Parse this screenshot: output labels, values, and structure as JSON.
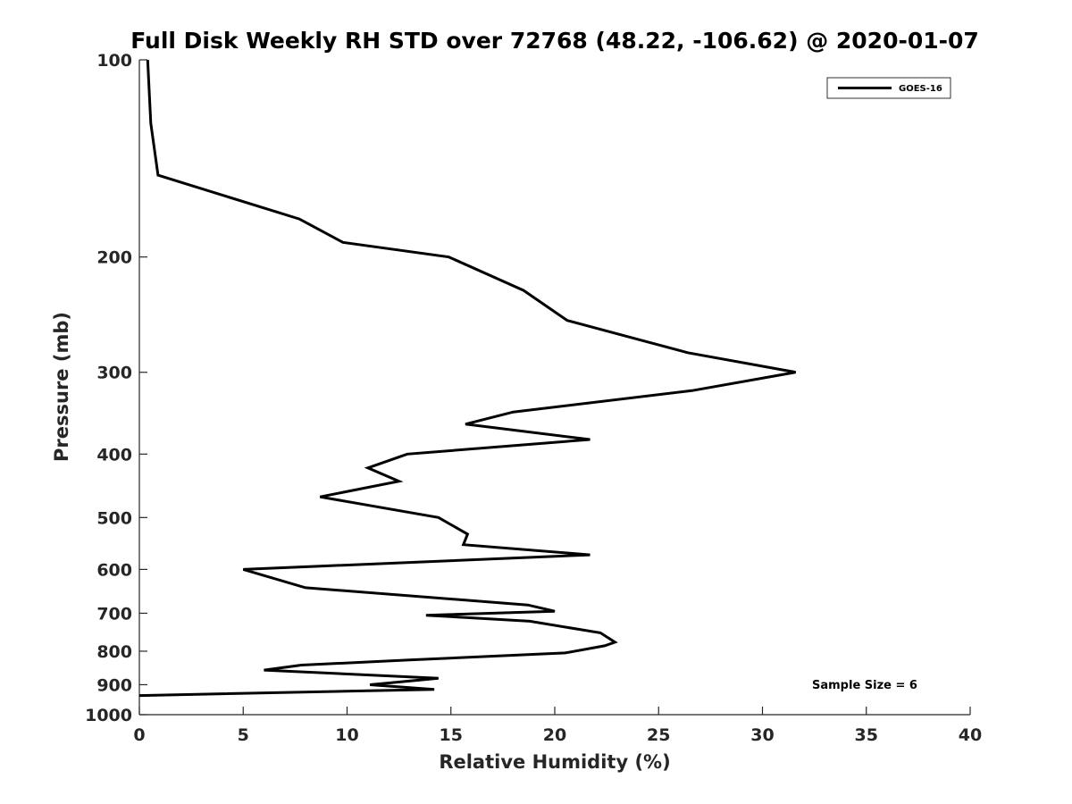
{
  "chart_data": {
    "type": "line",
    "title": "Full Disk Weekly RH STD over 72768 (48.22, -106.62) @ 2020-01-07",
    "xlabel": "Relative Humidity (%)",
    "ylabel": "Pressure (mb)",
    "xlim": [
      0,
      40
    ],
    "ylim": [
      100,
      1000
    ],
    "y_scale": "log",
    "y_reversed": true,
    "x_ticks": [
      "0",
      "5",
      "10",
      "15",
      "20",
      "25",
      "30",
      "35",
      "40"
    ],
    "y_ticks": [
      "100",
      "200",
      "300",
      "400",
      "500",
      "600",
      "700",
      "800",
      "900",
      "1000"
    ],
    "grid": false,
    "legend_position": "top-right",
    "annotation": "Sample Size = 6",
    "series": [
      {
        "name": "GOES-16",
        "color": "#000000",
        "points": [
          {
            "x": 0.4,
            "p": 100
          },
          {
            "x": 0.55,
            "p": 125
          },
          {
            "x": 0.9,
            "p": 150
          },
          {
            "x": 7.7,
            "p": 175
          },
          {
            "x": 9.8,
            "p": 190
          },
          {
            "x": 14.9,
            "p": 200
          },
          {
            "x": 18.5,
            "p": 225
          },
          {
            "x": 20.6,
            "p": 250
          },
          {
            "x": 26.4,
            "p": 280
          },
          {
            "x": 31.6,
            "p": 300
          },
          {
            "x": 26.6,
            "p": 320
          },
          {
            "x": 18.0,
            "p": 345
          },
          {
            "x": 15.7,
            "p": 360
          },
          {
            "x": 21.7,
            "p": 380
          },
          {
            "x": 12.9,
            "p": 400
          },
          {
            "x": 11.0,
            "p": 420
          },
          {
            "x": 12.5,
            "p": 440
          },
          {
            "x": 8.7,
            "p": 465
          },
          {
            "x": 14.4,
            "p": 500
          },
          {
            "x": 15.8,
            "p": 530
          },
          {
            "x": 15.6,
            "p": 550
          },
          {
            "x": 21.7,
            "p": 570
          },
          {
            "x": 5.0,
            "p": 600
          },
          {
            "x": 8.0,
            "p": 640
          },
          {
            "x": 18.7,
            "p": 680
          },
          {
            "x": 20.0,
            "p": 695
          },
          {
            "x": 13.8,
            "p": 705
          },
          {
            "x": 18.8,
            "p": 720
          },
          {
            "x": 22.2,
            "p": 750
          },
          {
            "x": 22.9,
            "p": 775
          },
          {
            "x": 22.4,
            "p": 785
          },
          {
            "x": 20.5,
            "p": 805
          },
          {
            "x": 13.0,
            "p": 825
          },
          {
            "x": 7.8,
            "p": 840
          },
          {
            "x": 6.0,
            "p": 855
          },
          {
            "x": 14.4,
            "p": 880
          },
          {
            "x": 11.1,
            "p": 900
          },
          {
            "x": 14.2,
            "p": 915
          },
          {
            "x": 0.0,
            "p": 935
          }
        ]
      }
    ]
  }
}
